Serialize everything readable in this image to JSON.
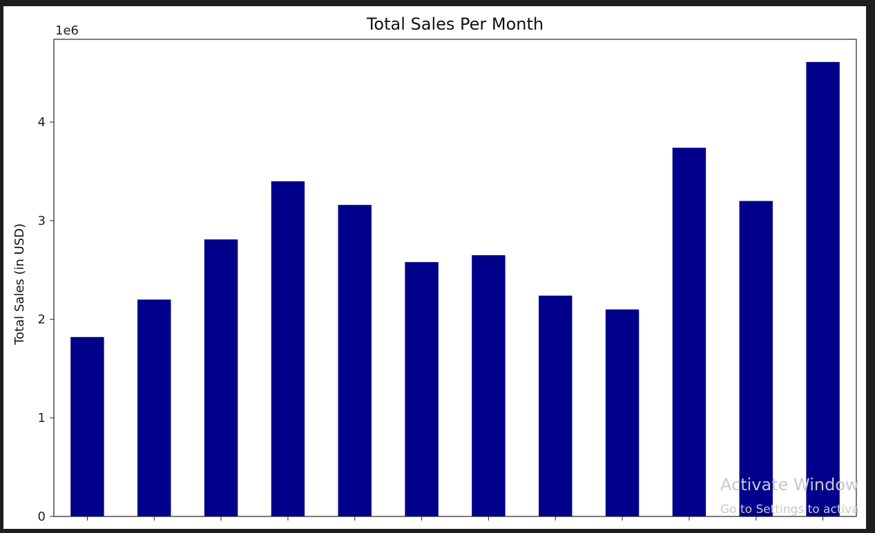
{
  "chart_data": {
    "type": "bar",
    "title": "Total Sales Per Month",
    "ylabel": "Total Sales (in USD)",
    "xlabel": "",
    "y_scale_label": "1e6",
    "categories": [
      "",
      "",
      "",
      "",
      "",
      "",
      "",
      "",
      "",
      "",
      "",
      ""
    ],
    "values": [
      1820000,
      2200000,
      2810000,
      3400000,
      3160000,
      2580000,
      2650000,
      2240000,
      2100000,
      3740000,
      3200000,
      4610000
    ],
    "yticks": [
      0,
      1,
      2,
      3,
      4
    ],
    "ylim": [
      0,
      4840000
    ],
    "bar_color": "#00008b",
    "grid": false,
    "legend": "none"
  },
  "watermark": {
    "line1": "Activate Window",
    "line2": "Go to Settings to activa"
  },
  "colors": {
    "background": "#1e1e1e",
    "plot_background": "#ffffff",
    "axes": "#222222"
  }
}
